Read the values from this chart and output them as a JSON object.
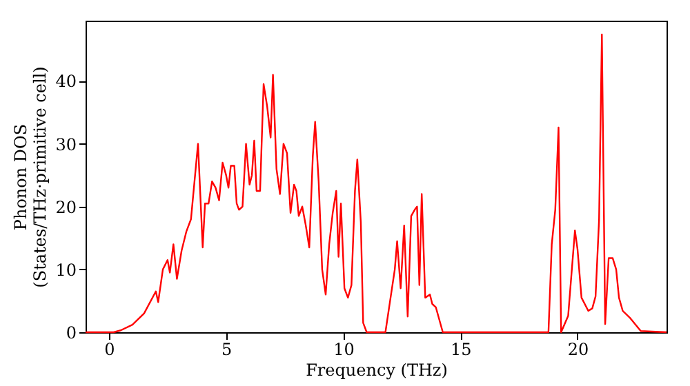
{
  "chart_data": {
    "type": "line",
    "xlabel": "Frequency (THz)",
    "ylabel": "Phonon DOS\n(States/THz·primitive cell)",
    "x": [
      -1,
      0.2,
      0.5,
      1,
      1.5,
      2,
      2.1,
      2.3,
      2.5,
      2.6,
      2.75,
      2.9,
      3.1,
      3.3,
      3.5,
      3.7,
      3.8,
      4.0,
      4.1,
      4.25,
      4.4,
      4.55,
      4.7,
      4.85,
      5.0,
      5.1,
      5.2,
      5.35,
      5.45,
      5.55,
      5.7,
      5.85,
      6.0,
      6.1,
      6.2,
      6.3,
      6.45,
      6.6,
      6.75,
      6.9,
      7.0,
      7.15,
      7.3,
      7.45,
      7.6,
      7.75,
      7.9,
      8.0,
      8.1,
      8.25,
      8.4,
      8.55,
      8.7,
      8.8,
      8.95,
      9.1,
      9.25,
      9.4,
      9.55,
      9.7,
      9.8,
      9.9,
      10.05,
      10.2,
      10.35,
      10.5,
      10.6,
      10.75,
      10.85,
      11.0,
      11.8,
      12.0,
      12.2,
      12.3,
      12.45,
      12.6,
      12.75,
      12.9,
      13.05,
      13.15,
      13.25,
      13.35,
      13.5,
      13.7,
      13.8,
      13.95,
      14.1,
      14.25,
      18.76,
      18.9,
      19.05,
      19.19,
      19.3,
      19.6,
      19.89,
      20.0,
      20.17,
      20.46,
      20.63,
      20.77,
      20.92,
      21.04,
      21.18,
      21.33,
      21.5,
      21.65,
      21.77,
      21.93,
      22.26,
      22.7,
      23.8
    ],
    "series": [
      {
        "color": "#ff0000",
        "values": [
          0,
          0,
          0.3,
          1.2,
          3,
          6.5,
          4.8,
          10,
          11.5,
          9.5,
          14,
          8.5,
          13,
          16,
          18,
          26,
          30,
          13.5,
          20.5,
          20.5,
          24,
          23,
          21,
          27,
          25,
          23,
          26.5,
          26.5,
          20.5,
          19.5,
          20,
          30,
          23.5,
          25,
          30.5,
          22.5,
          22.5,
          39.5,
          36,
          31,
          41,
          26,
          22,
          30,
          28.5,
          19,
          23.5,
          22.5,
          18.5,
          20,
          17,
          13.5,
          28,
          33.5,
          24,
          10,
          6,
          14,
          19,
          22.5,
          12,
          20.5,
          7,
          5.5,
          7.5,
          22.5,
          27.5,
          17.5,
          1.5,
          0,
          0,
          5,
          10,
          14.5,
          7,
          17,
          2.5,
          18.5,
          19.5,
          20,
          7.5,
          22,
          5.5,
          6,
          4.5,
          4,
          2,
          0,
          0,
          14,
          19.5,
          32.6,
          0,
          2.6,
          16.2,
          13.2,
          5.5,
          3.4,
          3.8,
          5.7,
          17.9,
          47.4,
          1.3,
          11.8,
          11.8,
          10,
          5.5,
          3.4,
          2.2,
          0.2,
          0
        ]
      }
    ],
    "xlim": [
      -1,
      23.8
    ],
    "ylim": [
      0,
      49.6
    ],
    "xticks": [
      0,
      5,
      10,
      15,
      20
    ],
    "yticks": [
      0,
      10,
      20,
      30,
      40
    ],
    "grid": false,
    "line_style": "solid",
    "marker": "none"
  }
}
